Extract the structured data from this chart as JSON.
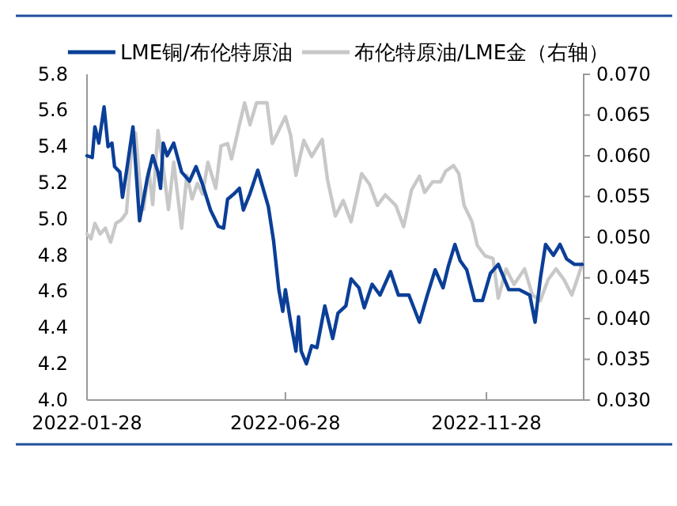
{
  "chart_data": {
    "type": "line",
    "legend": "top",
    "marker": "none",
    "line_style": "solid",
    "grid": false,
    "xlim": [
      "2022-01-28",
      "2023-02-10"
    ],
    "xticks": [
      {
        "value": "2022-01-28",
        "label": "2022-01-28"
      },
      {
        "value": "2022-06-28",
        "label": "2022-06-28"
      },
      {
        "value": "2022-11-28",
        "label": "2022-11-28"
      }
    ],
    "ylim": [
      4.0,
      5.8
    ],
    "yticks": [
      {
        "value": 4.0,
        "label": "4.0"
      },
      {
        "value": 4.2,
        "label": "4.2"
      },
      {
        "value": 4.4,
        "label": "4.4"
      },
      {
        "value": 4.6,
        "label": "4.6"
      },
      {
        "value": 4.8,
        "label": "4.8"
      },
      {
        "value": 5.0,
        "label": "5.0"
      },
      {
        "value": 5.2,
        "label": "5.2"
      },
      {
        "value": 5.4,
        "label": "5.4"
      },
      {
        "value": 5.6,
        "label": "5.6"
      },
      {
        "value": 5.8,
        "label": "5.8"
      }
    ],
    "y2lim": [
      0.03,
      0.07
    ],
    "y2ticks": [
      {
        "value": 0.03,
        "label": "0.030"
      },
      {
        "value": 0.035,
        "label": "0.035"
      },
      {
        "value": 0.04,
        "label": "0.040"
      },
      {
        "value": 0.045,
        "label": "0.045"
      },
      {
        "value": 0.05,
        "label": "0.050"
      },
      {
        "value": 0.055,
        "label": "0.055"
      },
      {
        "value": 0.06,
        "label": "0.060"
      },
      {
        "value": 0.065,
        "label": "0.065"
      },
      {
        "value": 0.07,
        "label": "0.070"
      }
    ],
    "series": [
      {
        "name": "LME铜/布伦特原油",
        "color": "#0b3f97",
        "x": [
          "2022-01-28",
          "2022-02-01",
          "2022-02-03",
          "2022-02-06",
          "2022-02-10",
          "2022-02-13",
          "2022-02-16",
          "2022-02-18",
          "2022-02-22",
          "2022-02-24",
          "2022-02-27",
          "2022-03-04",
          "2022-03-09",
          "2022-03-12",
          "2022-03-15",
          "2022-03-19",
          "2022-03-23",
          "2022-03-25",
          "2022-03-27",
          "2022-03-30",
          "2022-04-04",
          "2022-04-10",
          "2022-04-16",
          "2022-04-21",
          "2022-04-26",
          "2022-05-02",
          "2022-05-08",
          "2022-05-12",
          "2022-05-15",
          "2022-05-20",
          "2022-05-24",
          "2022-05-27",
          "2022-06-01",
          "2022-06-07",
          "2022-06-11",
          "2022-06-15",
          "2022-06-19",
          "2022-06-23",
          "2022-06-26",
          "2022-06-28",
          "2022-07-02",
          "2022-07-06",
          "2022-07-08",
          "2022-07-10",
          "2022-07-14",
          "2022-07-18",
          "2022-07-22",
          "2022-07-28",
          "2022-08-03",
          "2022-08-07",
          "2022-08-13",
          "2022-08-17",
          "2022-08-23",
          "2022-08-27",
          "2022-09-02",
          "2022-09-08",
          "2022-09-16",
          "2022-09-22",
          "2022-09-30",
          "2022-10-08",
          "2022-10-14",
          "2022-10-20",
          "2022-10-26",
          "2022-10-30",
          "2022-11-04",
          "2022-11-08",
          "2022-11-13",
          "2022-11-19",
          "2022-11-25",
          "2022-12-01",
          "2022-12-07",
          "2022-12-15",
          "2022-12-23",
          "2022-12-31",
          "2023-01-04",
          "2023-01-08",
          "2023-01-12",
          "2023-01-18",
          "2023-01-23",
          "2023-01-28",
          "2023-02-03",
          "2023-02-09"
        ],
        "values": [
          5.35,
          5.34,
          5.51,
          5.42,
          5.62,
          5.4,
          5.42,
          5.29,
          5.26,
          5.12,
          5.26,
          5.51,
          4.99,
          5.11,
          5.23,
          5.35,
          5.26,
          5.17,
          5.42,
          5.35,
          5.42,
          5.26,
          5.21,
          5.29,
          5.19,
          5.05,
          4.96,
          4.95,
          5.11,
          5.14,
          5.17,
          5.05,
          5.14,
          5.27,
          5.17,
          5.07,
          4.88,
          4.61,
          4.49,
          4.61,
          4.43,
          4.27,
          4.46,
          4.27,
          4.2,
          4.3,
          4.29,
          4.52,
          4.34,
          4.48,
          4.52,
          4.67,
          4.62,
          4.51,
          4.64,
          4.58,
          4.71,
          4.58,
          4.58,
          4.43,
          4.58,
          4.72,
          4.62,
          4.74,
          4.86,
          4.77,
          4.72,
          4.55,
          4.55,
          4.7,
          4.75,
          4.61,
          4.61,
          4.58,
          4.43,
          4.67,
          4.86,
          4.8,
          4.86,
          4.78,
          4.75,
          4.75
        ]
      },
      {
        "name": "布伦特原油/LME金（右轴）",
        "color": "#c8c8c8",
        "axis": "y2",
        "x": [
          "2022-01-28",
          "2022-01-31",
          "2022-02-03",
          "2022-02-07",
          "2022-02-11",
          "2022-02-15",
          "2022-02-19",
          "2022-02-23",
          "2022-02-27",
          "2022-03-03",
          "2022-03-06",
          "2022-03-09",
          "2022-03-12",
          "2022-03-16",
          "2022-03-19",
          "2022-03-23",
          "2022-03-27",
          "2022-03-31",
          "2022-04-04",
          "2022-04-10",
          "2022-04-14",
          "2022-04-18",
          "2022-04-22",
          "2022-04-26",
          "2022-04-30",
          "2022-05-06",
          "2022-05-10",
          "2022-05-15",
          "2022-05-18",
          "2022-05-24",
          "2022-05-28",
          "2022-06-01",
          "2022-06-06",
          "2022-06-14",
          "2022-06-18",
          "2022-06-22",
          "2022-06-28",
          "2022-07-02",
          "2022-07-06",
          "2022-07-12",
          "2022-07-18",
          "2022-07-22",
          "2022-07-26",
          "2022-07-30",
          "2022-08-05",
          "2022-08-11",
          "2022-08-17",
          "2022-08-25",
          "2022-08-31",
          "2022-09-06",
          "2022-09-12",
          "2022-09-20",
          "2022-09-26",
          "2022-10-02",
          "2022-10-08",
          "2022-10-12",
          "2022-10-18",
          "2022-10-24",
          "2022-10-28",
          "2022-11-03",
          "2022-11-07",
          "2022-11-11",
          "2022-11-17",
          "2022-11-21",
          "2022-11-27",
          "2022-12-03",
          "2022-12-07",
          "2022-12-13",
          "2022-12-19",
          "2022-12-27",
          "2023-01-02",
          "2023-01-08",
          "2023-01-14",
          "2023-01-20",
          "2023-01-26",
          "2023-02-01",
          "2023-02-05",
          "2023-02-09"
        ],
        "values": [
          0.0504,
          0.0498,
          0.0517,
          0.0504,
          0.0511,
          0.0494,
          0.0517,
          0.0521,
          0.053,
          0.0609,
          0.0628,
          0.057,
          0.0534,
          0.0583,
          0.054,
          0.0631,
          0.0586,
          0.0534,
          0.0592,
          0.0511,
          0.0576,
          0.0547,
          0.0566,
          0.0553,
          0.0592,
          0.056,
          0.0612,
          0.0615,
          0.0596,
          0.0638,
          0.0665,
          0.0638,
          0.0665,
          0.0665,
          0.0615,
          0.0628,
          0.0648,
          0.0625,
          0.0576,
          0.0619,
          0.0599,
          0.061,
          0.062,
          0.0571,
          0.0526,
          0.0545,
          0.0519,
          0.0578,
          0.0565,
          0.0539,
          0.0552,
          0.0539,
          0.0513,
          0.0558,
          0.0575,
          0.0555,
          0.0568,
          0.0568,
          0.0581,
          0.0588,
          0.0578,
          0.0539,
          0.0519,
          0.049,
          0.0477,
          0.0474,
          0.0425,
          0.0461,
          0.0442,
          0.0461,
          0.0429,
          0.0422,
          0.0448,
          0.0461,
          0.0448,
          0.0429,
          0.0448,
          0.0468
        ]
      }
    ]
  }
}
